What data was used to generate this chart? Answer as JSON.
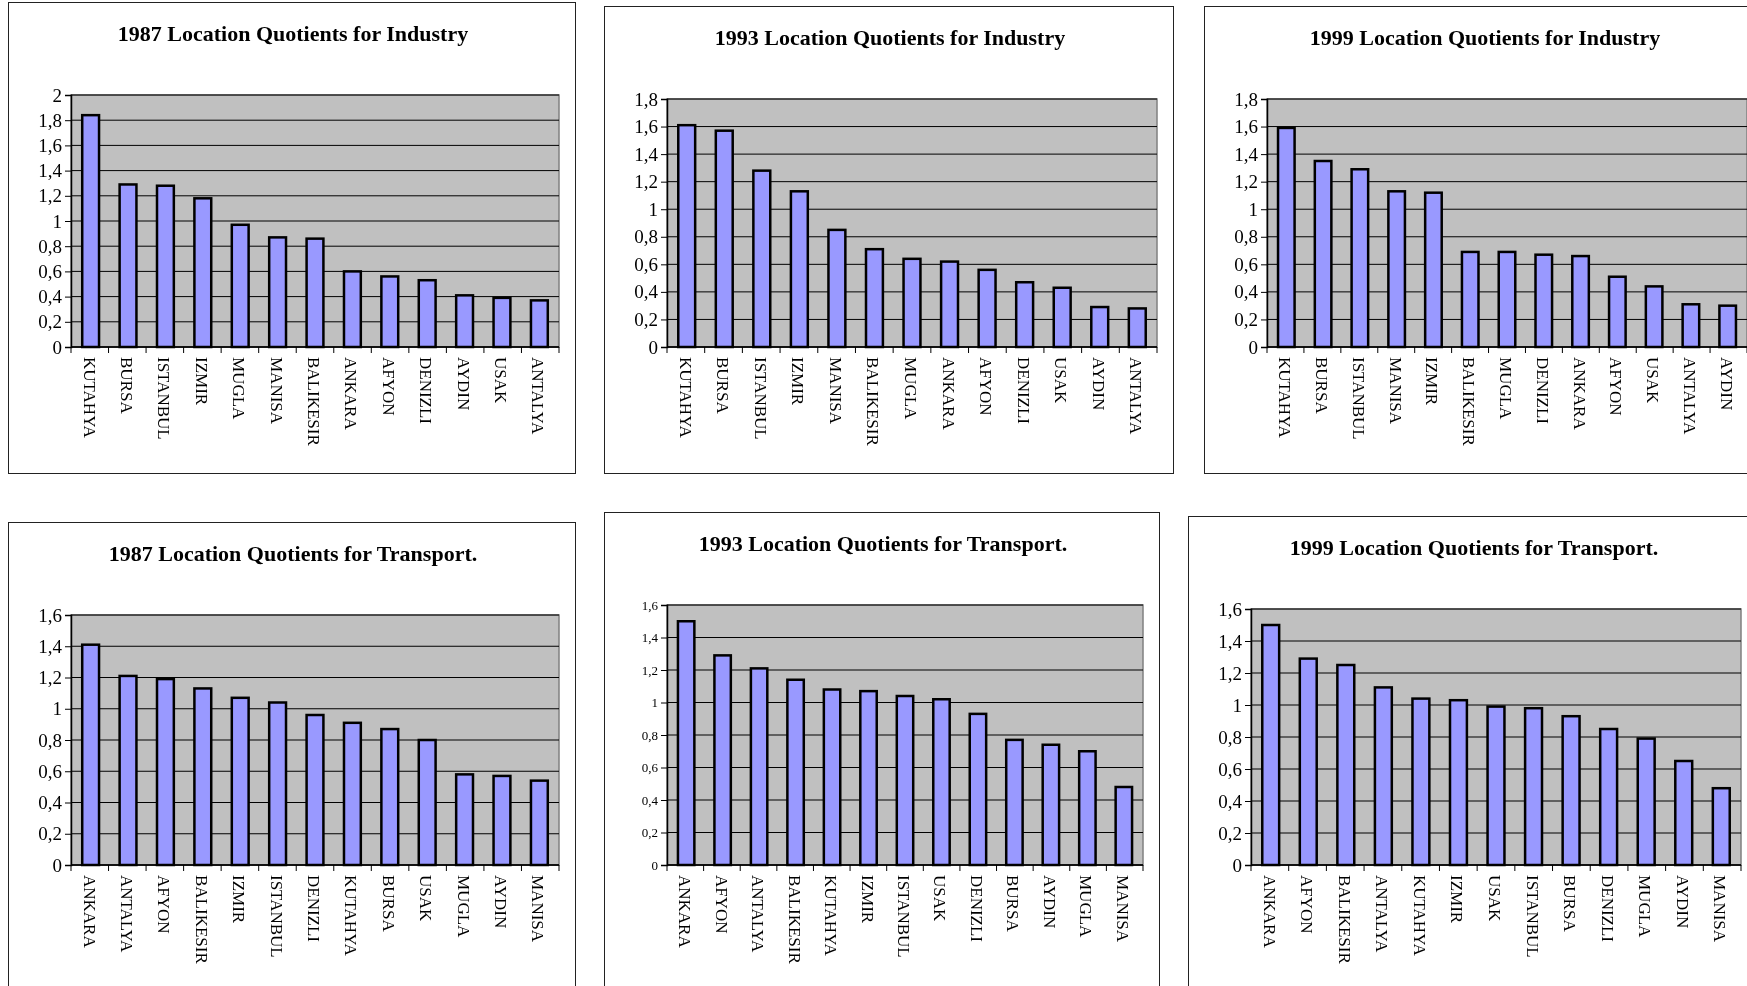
{
  "chart_data": [
    {
      "type": "bar",
      "title": "1987 Location Quotients for Industry",
      "categories": [
        "KUTAHYA",
        "BURSA",
        "ISTANBUL",
        "IZMIR",
        "MUGLA",
        "MANISA",
        "BALIKESIR",
        "ANKARA",
        "AFYON",
        "DENIZLI",
        "AYDIN",
        "USAK",
        "ANTALYA"
      ],
      "values": [
        1.84,
        1.29,
        1.28,
        1.18,
        0.97,
        0.87,
        0.86,
        0.6,
        0.56,
        0.53,
        0.41,
        0.39,
        0.37
      ],
      "color": "#9999ff",
      "ylim": [
        0,
        2
      ],
      "yticks": [
        0,
        {
          "value": 0.2,
          "label": "0,2"
        },
        {
          "value": 0.4,
          "label": "0,4"
        },
        {
          "value": 0.6,
          "label": "0,6"
        },
        {
          "value": 0.8,
          "label": "0,8"
        },
        1,
        {
          "value": 1.2,
          "label": "1,2"
        },
        {
          "value": 1.4,
          "label": "1,4"
        },
        {
          "value": 1.6,
          "label": "1,6"
        },
        {
          "value": 1.8,
          "label": "1,8"
        },
        2
      ],
      "grid": "y"
    },
    {
      "type": "bar",
      "title": "1993 Location Quotients for Industry",
      "categories": [
        "KUTAHYA",
        "BURSA",
        "ISTANBUL",
        "IZMIR",
        "MANISA",
        "BALIKESIR",
        "MUGLA",
        "ANKARA",
        "AFYON",
        "DENIZLI",
        "USAK",
        "AYDIN",
        "ANTALYA"
      ],
      "values": [
        1.61,
        1.57,
        1.28,
        1.13,
        0.85,
        0.71,
        0.64,
        0.62,
        0.56,
        0.47,
        0.43,
        0.29,
        0.28
      ],
      "color": "#9999ff",
      "ylim": [
        0,
        1.8
      ],
      "yticks": [
        0,
        {
          "value": 0.2,
          "label": "0,2"
        },
        {
          "value": 0.4,
          "label": "0,4"
        },
        {
          "value": 0.6,
          "label": "0,6"
        },
        {
          "value": 0.8,
          "label": "0,8"
        },
        1,
        {
          "value": 1.2,
          "label": "1,2"
        },
        {
          "value": 1.4,
          "label": "1,4"
        },
        {
          "value": 1.6,
          "label": "1,6"
        },
        {
          "value": 1.8,
          "label": "1,8"
        }
      ],
      "grid": "y"
    },
    {
      "type": "bar",
      "title": "1999 Location Quotients for Industry",
      "categories": [
        "KUTAHYA",
        "BURSA",
        "ISTANBUL",
        "MANISA",
        "IZMIR",
        "BALIKESIR",
        "MUGLA",
        "DENIZLI",
        "ANKARA",
        "AFYON",
        "USAK",
        "ANTALYA",
        "AYDIN"
      ],
      "values": [
        1.59,
        1.35,
        1.29,
        1.13,
        1.12,
        0.69,
        0.69,
        0.67,
        0.66,
        0.51,
        0.44,
        0.31,
        0.3
      ],
      "color": "#9999ff",
      "ylim": [
        0,
        1.8
      ],
      "yticks": [
        0,
        {
          "value": 0.2,
          "label": "0,2"
        },
        {
          "value": 0.4,
          "label": "0,4"
        },
        {
          "value": 0.6,
          "label": "0,6"
        },
        {
          "value": 0.8,
          "label": "0,8"
        },
        1,
        {
          "value": 1.2,
          "label": "1,2"
        },
        {
          "value": 1.4,
          "label": "1,4"
        },
        {
          "value": 1.6,
          "label": "1,6"
        },
        {
          "value": 1.8,
          "label": "1,8"
        }
      ],
      "grid": "y"
    },
    {
      "type": "bar",
      "title": "1987 Location Quotients for Transport.",
      "categories": [
        "ANKARA",
        "ANTALYA",
        "AFYON",
        "BALIKESIR",
        "IZMIR",
        "ISTANBUL",
        "DENIZLI",
        "KUTAHYA",
        "BURSA",
        "USAK",
        "MUGLA",
        "AYDIN",
        "MANISA"
      ],
      "values": [
        1.41,
        1.21,
        1.19,
        1.13,
        1.07,
        1.04,
        0.96,
        0.91,
        0.87,
        0.8,
        0.58,
        0.57,
        0.54
      ],
      "color": "#9999ff",
      "ylim": [
        0,
        1.6
      ],
      "yticks": [
        0,
        {
          "value": 0.2,
          "label": "0,2"
        },
        {
          "value": 0.4,
          "label": "0,4"
        },
        {
          "value": 0.6,
          "label": "0,6"
        },
        {
          "value": 0.8,
          "label": "0,8"
        },
        1,
        {
          "value": 1.2,
          "label": "1,2"
        },
        {
          "value": 1.4,
          "label": "1,4"
        },
        {
          "value": 1.6,
          "label": "1,6"
        }
      ],
      "grid": "y"
    },
    {
      "type": "bar",
      "title": "1993 Location Quotients for Transport.",
      "categories": [
        "ANKARA",
        "AFYON",
        "ANTALYA",
        "BALIKESIR",
        "KUTAHYA",
        "IZMIR",
        "ISTANBUL",
        "USAK",
        "DENIZLI",
        "BURSA",
        "AYDIN",
        "MUGLA",
        "MANISA"
      ],
      "values": [
        1.5,
        1.29,
        1.21,
        1.14,
        1.08,
        1.07,
        1.04,
        1.02,
        0.93,
        0.77,
        0.74,
        0.7,
        0.48
      ],
      "color": "#9999ff",
      "ylim": [
        0,
        1.6
      ],
      "yticks": [
        0,
        {
          "value": 0.2,
          "label": "0,2"
        },
        {
          "value": 0.4,
          "label": "0,4"
        },
        {
          "value": 0.6,
          "label": "0,6"
        },
        {
          "value": 0.8,
          "label": "0,8"
        },
        1,
        {
          "value": 1.2,
          "label": "1,2"
        },
        {
          "value": 1.4,
          "label": "1,4"
        },
        {
          "value": 1.6,
          "label": "1,6"
        }
      ],
      "grid": "y"
    },
    {
      "type": "bar",
      "title": "1999 Location Quotients for Transport.",
      "categories": [
        "ANKARA",
        "AFYON",
        "BALIKESIR",
        "ANTALYA",
        "KUTAHYA",
        "IZMIR",
        "USAK",
        "ISTANBUL",
        "BURSA",
        "DENIZLI",
        "MUGLA",
        "AYDIN",
        "MANISA"
      ],
      "values": [
        1.5,
        1.29,
        1.25,
        1.11,
        1.04,
        1.03,
        0.99,
        0.98,
        0.93,
        0.85,
        0.79,
        0.65,
        0.48
      ],
      "color": "#9999ff",
      "ylim": [
        0,
        1.6
      ],
      "yticks": [
        0,
        {
          "value": 0.2,
          "label": "0,2"
        },
        {
          "value": 0.4,
          "label": "0,4"
        },
        {
          "value": 0.6,
          "label": "0,6"
        },
        {
          "value": 0.8,
          "label": "0,8"
        },
        1,
        {
          "value": 1.2,
          "label": "1,2"
        },
        {
          "value": 1.4,
          "label": "1,4"
        },
        {
          "value": 1.6,
          "label": "1,6"
        }
      ],
      "grid": "y"
    }
  ]
}
